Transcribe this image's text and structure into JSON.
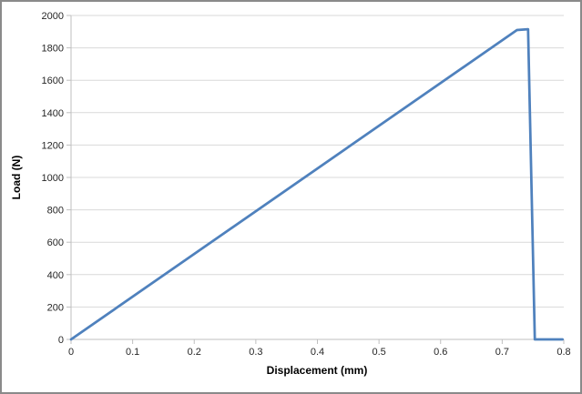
{
  "chart_data": {
    "type": "line",
    "title": "",
    "xlabel": "Displacement (mm)",
    "ylabel": "Load (N)",
    "xlim": [
      0,
      0.8
    ],
    "ylim": [
      0,
      2000
    ],
    "x_ticks": [
      "0",
      "0.1",
      "0.2",
      "0.3",
      "0.4",
      "0.5",
      "0.6",
      "0.7",
      "0.8"
    ],
    "y_ticks": [
      "0",
      "200",
      "400",
      "600",
      "800",
      "1000",
      "1200",
      "1400",
      "1600",
      "1800",
      "2000"
    ],
    "grid": "horizontal-only",
    "legend": "none",
    "series": [
      {
        "name": "Load",
        "color": "#4F81BD",
        "points": [
          [
            0,
            0
          ],
          [
            0.724,
            1910
          ],
          [
            0.742,
            1915
          ],
          [
            0.753,
            0
          ],
          [
            0.798,
            0
          ]
        ]
      }
    ],
    "annotations": {
      "peak_load_n": 1915,
      "failure_displacement_mm": 0.753
    },
    "colors": {
      "line": "#4F81BD",
      "gridline": "#D9D9D9",
      "axis": "#BFBFBF",
      "tick_text": "#262626",
      "title_text": "#000000",
      "border": "#8A8A8A",
      "background": "#FFFFFF"
    }
  }
}
